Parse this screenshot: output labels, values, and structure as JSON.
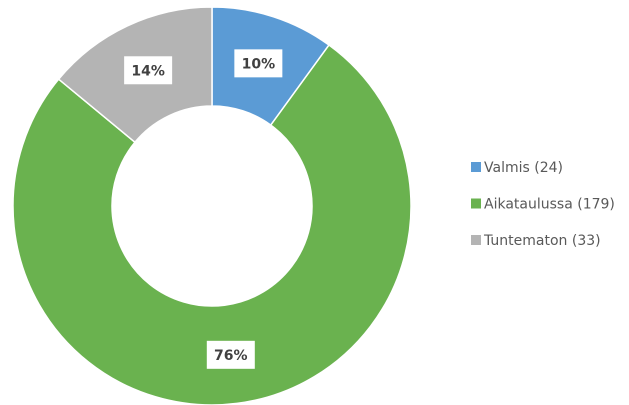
{
  "chart_data": {
    "type": "donut",
    "categories": [
      "Valmis (24)",
      "Aikataulussa (179)",
      "Tuntematon (33)"
    ],
    "values": [
      10,
      76,
      14
    ],
    "value_labels": [
      "10%",
      "76%",
      "14%"
    ],
    "colors": [
      "#5b9bd5",
      "#6ab24f",
      "#b4b4b4"
    ],
    "legend": "right"
  }
}
